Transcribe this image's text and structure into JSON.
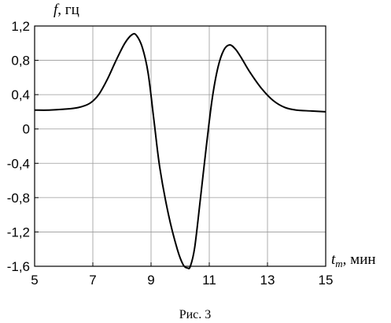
{
  "chart_data": {
    "type": "line",
    "xlabel_var": "t",
    "xlabel_sub": "m",
    "xlabel_unit": ", мин",
    "ylabel_var": "f",
    "ylabel_unit": ", гц",
    "xlim": [
      5,
      15
    ],
    "ylim": [
      -1.6,
      1.2
    ],
    "x_ticks": [
      5,
      7,
      9,
      11,
      13,
      15
    ],
    "x_tick_labels": [
      "5",
      "7",
      "9",
      "11",
      "13",
      "15"
    ],
    "y_ticks": [
      1.2,
      0.8,
      0.4,
      0,
      -0.4,
      -0.8,
      -1.2,
      -1.6
    ],
    "y_tick_labels": [
      "1,2",
      "0,8",
      "0,4",
      "0",
      "-0,4",
      "-0,8",
      "-1,2",
      "-1,6"
    ],
    "x_grid": [
      5,
      7,
      9,
      11,
      13,
      15
    ],
    "y_grid": [
      1.2,
      0.8,
      0.4,
      0,
      -0.4,
      -0.8,
      -1.2,
      -1.6
    ],
    "grid": true,
    "series": [
      {
        "color": "#000000",
        "x": [
          5.0,
          5.5,
          6.0,
          6.5,
          6.9,
          7.2,
          7.5,
          7.8,
          8.1,
          8.35,
          8.5,
          8.7,
          8.9,
          9.1,
          9.3,
          9.6,
          9.9,
          10.1,
          10.25,
          10.35,
          10.5,
          10.7,
          10.9,
          11.1,
          11.3,
          11.5,
          11.7,
          11.9,
          12.1,
          12.4,
          12.8,
          13.2,
          13.6,
          14.0,
          14.5,
          15.0
        ],
        "y": [
          0.22,
          0.22,
          0.23,
          0.25,
          0.3,
          0.4,
          0.58,
          0.8,
          1.0,
          1.1,
          1.09,
          0.95,
          0.65,
          0.1,
          -0.45,
          -1.0,
          -1.4,
          -1.58,
          -1.62,
          -1.6,
          -1.38,
          -0.8,
          -0.2,
          0.35,
          0.72,
          0.92,
          0.98,
          0.93,
          0.83,
          0.66,
          0.47,
          0.33,
          0.25,
          0.22,
          0.21,
          0.2
        ]
      }
    ]
  },
  "caption": "Рис. 3"
}
